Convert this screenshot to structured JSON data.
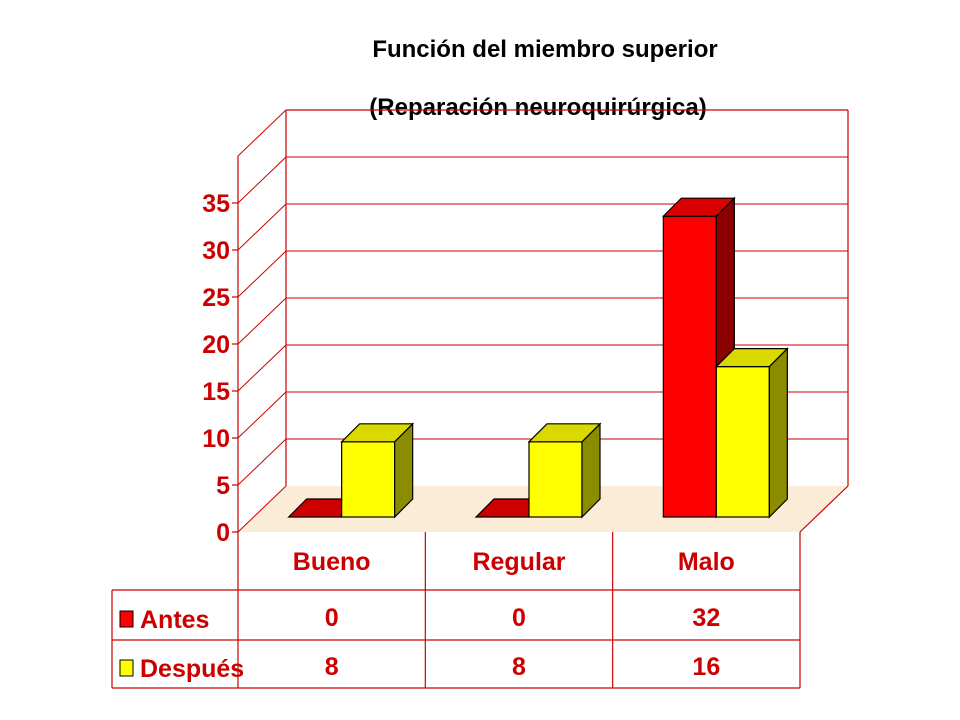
{
  "chart_data": {
    "type": "bar",
    "title": "Función del miembro superior",
    "subtitle": "(Reparación neuroquirúrgica)",
    "categories": [
      "Bueno",
      "Regular",
      "Malo"
    ],
    "series": [
      {
        "name": "Antes",
        "values": [
          0,
          0,
          32
        ],
        "color": "#ff0000"
      },
      {
        "name": "Después",
        "values": [
          8,
          8,
          16
        ],
        "color": "#ffff00"
      }
    ],
    "ylim": [
      0,
      35
    ],
    "yticks": [
      "0",
      "5",
      "10",
      "15",
      "20",
      "25",
      "30",
      "35"
    ],
    "grid": true,
    "legend": "data-table",
    "table": [
      {
        "series": "Antes",
        "cells": [
          "0",
          "0",
          "32"
        ]
      },
      {
        "series": "Después",
        "cells": [
          "8",
          "8",
          "16"
        ]
      }
    ]
  },
  "colors": {
    "axis": "#cc0000",
    "antes": "#ff0000",
    "despues": "#ffff00",
    "floor": "#fbecd8"
  }
}
